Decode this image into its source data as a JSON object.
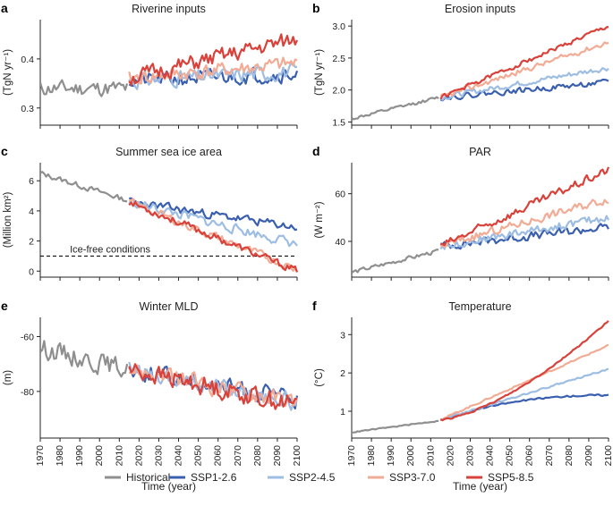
{
  "figure": {
    "legend": [
      {
        "name": "Historical",
        "color": "#8f8f8f"
      },
      {
        "name": "SSP1-2.6",
        "color": "#3a5fae"
      },
      {
        "name": "SSP2-4.5",
        "color": "#9dbde3"
      },
      {
        "name": "SSP3-7.0",
        "color": "#f2ab94"
      },
      {
        "name": "SSP5-8.5",
        "color": "#d9423b"
      }
    ],
    "x_tick_labels": [
      "1970",
      "1980",
      "1990",
      "2000",
      "2010",
      "2020",
      "2030",
      "2040",
      "2050",
      "2060",
      "2070",
      "2080",
      "2090",
      "2100"
    ]
  },
  "chart_data": [
    {
      "type": "line",
      "letter": "a",
      "title": "Riverine inputs",
      "ylabel": "(TgN yr⁻¹)",
      "xlabel": "",
      "xlim": [
        1970,
        2100
      ],
      "ylim": [
        0.265,
        0.48
      ],
      "yticks": [
        "0.3",
        "0.4"
      ],
      "historical": {
        "start": 1970,
        "end": 2014,
        "base": [
          0.34,
          0.34
        ],
        "amp": 0.022,
        "seed": 11
      },
      "series": [
        {
          "name": "SSP1-2.6",
          "start": 2015,
          "base": [
            0.355,
            0.37
          ],
          "amp": 0.022,
          "seed": 21
        },
        {
          "name": "SSP2-4.5",
          "start": 2015,
          "base": [
            0.355,
            0.375
          ],
          "amp": 0.022,
          "seed": 31
        },
        {
          "name": "SSP3-7.0",
          "start": 2015,
          "base": [
            0.36,
            0.39
          ],
          "amp": 0.022,
          "seed": 41
        },
        {
          "name": "SSP5-8.5",
          "start": 2015,
          "base": [
            0.36,
            0.44
          ],
          "amp": 0.024,
          "seed": 51
        }
      ]
    },
    {
      "type": "line",
      "letter": "b",
      "title": "Erosion inputs",
      "ylabel": "(TgN yr⁻¹)",
      "xlabel": "",
      "xlim": [
        1970,
        2100
      ],
      "ylim": [
        1.45,
        3.1
      ],
      "yticks": [
        "1.5",
        "2.0",
        "2.5",
        "3.0"
      ],
      "historical": {
        "start": 1970,
        "end": 2014,
        "base": [
          1.55,
          1.88
        ],
        "amp": 0.035,
        "seed": 12
      },
      "series": [
        {
          "name": "SSP1-2.6",
          "start": 2015,
          "base": [
            1.88,
            2.12
          ],
          "amp": 0.06,
          "seed": 22
        },
        {
          "name": "SSP2-4.5",
          "start": 2015,
          "base": [
            1.88,
            2.35
          ],
          "amp": 0.06,
          "seed": 32
        },
        {
          "name": "SSP3-7.0",
          "start": 2015,
          "base": [
            1.88,
            2.75
          ],
          "amp": 0.06,
          "seed": 42
        },
        {
          "name": "SSP5-8.5",
          "start": 2015,
          "base": [
            1.88,
            3.0
          ],
          "amp": 0.05,
          "seed": 52
        }
      ]
    },
    {
      "type": "line",
      "letter": "c",
      "title": "Summer sea ice area",
      "ylabel": "(Million km²)",
      "xlabel": "",
      "xlim": [
        1970,
        2100
      ],
      "ylim": [
        -0.4,
        7.2
      ],
      "yticks": [
        "0",
        "2",
        "4",
        "6"
      ],
      "threshold": {
        "value": 1,
        "label": "Ice-free conditions"
      },
      "historical": {
        "start": 1970,
        "end": 2014,
        "base": [
          6.5,
          4.7
        ],
        "amp": 0.25,
        "seed": 13
      },
      "series": [
        {
          "name": "SSP1-2.6",
          "start": 2015,
          "base": [
            4.6,
            2.9
          ],
          "amp": 0.4,
          "seed": 23
        },
        {
          "name": "SSP2-4.5",
          "start": 2015,
          "base": [
            4.6,
            1.8
          ],
          "amp": 0.45,
          "seed": 33
        },
        {
          "name": "SSP3-7.0",
          "start": 2015,
          "base": [
            4.6,
            0.1
          ],
          "amp": 0.4,
          "seed": 43
        },
        {
          "name": "SSP5-8.5",
          "start": 2015,
          "base": [
            4.6,
            0.0
          ],
          "amp": 0.35,
          "seed": 53
        }
      ]
    },
    {
      "type": "line",
      "letter": "d",
      "title": "PAR",
      "ylabel": "(W m⁻²)",
      "xlabel": "",
      "xlim": [
        1970,
        2100
      ],
      "ylim": [
        25,
        73
      ],
      "yticks": [
        "40",
        "60"
      ],
      "historical": {
        "start": 1970,
        "end": 2014,
        "base": [
          27,
          36
        ],
        "amp": 1.2,
        "seed": 14
      },
      "series": [
        {
          "name": "SSP1-2.6",
          "start": 2015,
          "base": [
            38,
            46
          ],
          "amp": 2.5,
          "seed": 24
        },
        {
          "name": "SSP2-4.5",
          "start": 2015,
          "base": [
            38,
            50
          ],
          "amp": 2.5,
          "seed": 34
        },
        {
          "name": "SSP3-7.0",
          "start": 2015,
          "base": [
            38,
            58
          ],
          "amp": 2.5,
          "seed": 44
        },
        {
          "name": "SSP5-8.5",
          "start": 2015,
          "base": [
            38,
            70
          ],
          "amp": 2.5,
          "seed": 54
        }
      ]
    },
    {
      "type": "line",
      "letter": "e",
      "title": "Winter MLD",
      "ylabel": "(m)",
      "xlabel": "Time (year)",
      "xlim": [
        1970,
        2100
      ],
      "ylim": [
        -97,
        -53
      ],
      "yticks": [
        "-60",
        "-80"
      ],
      "historical": {
        "start": 1970,
        "end": 2014,
        "base": [
          -64,
          -72
        ],
        "amp": 5,
        "seed": 15
      },
      "series": [
        {
          "name": "SSP1-2.6",
          "start": 2015,
          "base": [
            -72,
            -83
          ],
          "amp": 4.5,
          "seed": 25
        },
        {
          "name": "SSP2-4.5",
          "start": 2015,
          "base": [
            -72,
            -84
          ],
          "amp": 4.5,
          "seed": 35
        },
        {
          "name": "SSP3-7.0",
          "start": 2015,
          "base": [
            -72,
            -84
          ],
          "amp": 4.5,
          "seed": 45
        },
        {
          "name": "SSP5-8.5",
          "start": 2015,
          "base": [
            -72,
            -85
          ],
          "amp": 5,
          "seed": 55
        }
      ]
    },
    {
      "type": "line",
      "letter": "f",
      "title": "Temperature",
      "ylabel": "(°C)",
      "xlabel": "Time (year)",
      "xlim": [
        1970,
        2100
      ],
      "ylim": [
        0.3,
        3.45
      ],
      "yticks": [
        "1",
        "2",
        "3"
      ],
      "historical": {
        "start": 1970,
        "end": 2014,
        "base": [
          0.45,
          0.75
        ],
        "amp": 0.02,
        "seed": 16
      },
      "series": [
        {
          "name": "SSP1-2.6",
          "start": 2015,
          "base": [
            0.78,
            1.42
          ],
          "curve": "plateau",
          "amp": 0.03,
          "seed": 26
        },
        {
          "name": "SSP2-4.5",
          "start": 2015,
          "base": [
            0.78,
            2.1
          ],
          "amp": 0.03,
          "seed": 36
        },
        {
          "name": "SSP3-7.0",
          "start": 2015,
          "base": [
            0.78,
            2.72
          ],
          "amp": 0.03,
          "seed": 46
        },
        {
          "name": "SSP5-8.5",
          "start": 2015,
          "base": [
            0.78,
            3.36
          ],
          "curve": "accel",
          "amp": 0.03,
          "seed": 56
        }
      ]
    }
  ]
}
